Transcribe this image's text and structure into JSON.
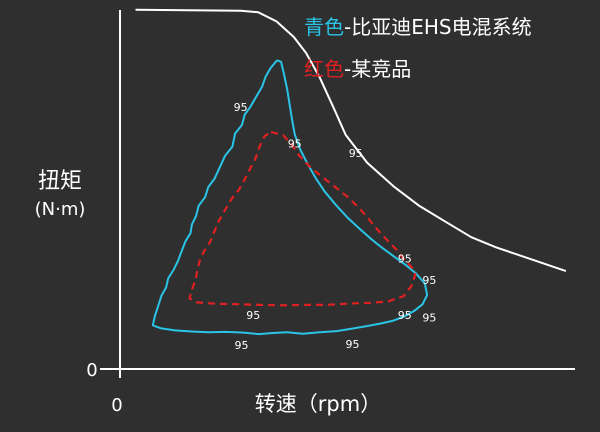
{
  "chart_data": {
    "type": "line",
    "title": "",
    "xlabel": "转速（rpm）",
    "ylabel": [
      "扭矩",
      "(N·m)"
    ],
    "origin_labels": {
      "x": "0",
      "y": "0"
    },
    "xlim": [
      0,
      100
    ],
    "ylim": [
      0,
      100
    ],
    "grid": false,
    "legend": {
      "placement": "top-right",
      "entries": [
        {
          "color_name": "青色",
          "separator": "-",
          "text": "比亚迪EHS电混系统",
          "color": "#29c4e6"
        },
        {
          "color_name": "红色",
          "separator": "-",
          "text": "某竞品",
          "color": "#e02020"
        }
      ]
    },
    "series": [
      {
        "role": "max-torque-curve",
        "color": "#ffffff",
        "style": "solid",
        "points": [
          [
            3.4,
            98.7
          ],
          [
            26.6,
            98.4
          ],
          [
            30.4,
            98.0
          ],
          [
            34.4,
            95.5
          ],
          [
            38.2,
            91.2
          ],
          [
            40.9,
            86.8
          ],
          [
            43.9,
            80.1
          ],
          [
            46.9,
            71.9
          ],
          [
            49.6,
            64.3
          ],
          [
            54.3,
            56.7
          ],
          [
            60.1,
            50.2
          ],
          [
            65.7,
            44.9
          ],
          [
            72.3,
            39.9
          ],
          [
            77.2,
            36.2
          ],
          [
            82.7,
            33.4
          ],
          [
            90.0,
            30.3
          ],
          [
            98.0,
            26.9
          ]
        ]
      },
      {
        "role": "efficiency-contour",
        "name": "比亚迪EHS电混系统",
        "color": "#29c4e6",
        "style": "solid",
        "points": [
          [
            34.5,
            84.8
          ],
          [
            33.0,
            82.5
          ],
          [
            32.0,
            80.3
          ],
          [
            31.2,
            77.5
          ],
          [
            29.8,
            74.5
          ],
          [
            28.6,
            71.9
          ],
          [
            27.4,
            69.9
          ],
          [
            26.8,
            67.0
          ],
          [
            25.3,
            64.7
          ],
          [
            24.7,
            61.1
          ],
          [
            23.1,
            58.6
          ],
          [
            21.9,
            55.3
          ],
          [
            20.8,
            52.3
          ],
          [
            19.4,
            50.0
          ],
          [
            18.7,
            47.2
          ],
          [
            17.3,
            44.9
          ],
          [
            16.7,
            42.0
          ],
          [
            15.8,
            39.7
          ],
          [
            15.5,
            37.3
          ],
          [
            14.4,
            35.1
          ],
          [
            13.5,
            32.2
          ],
          [
            12.7,
            29.6
          ],
          [
            11.8,
            27.3
          ],
          [
            10.6,
            24.9
          ],
          [
            10.1,
            22.3
          ],
          [
            9.1,
            20.1
          ],
          [
            8.4,
            17.3
          ],
          [
            7.7,
            14.7
          ],
          [
            7.2,
            12.0
          ],
          [
            8.9,
            11.2
          ],
          [
            12.1,
            10.6
          ],
          [
            15.8,
            10.3
          ],
          [
            19.4,
            10.1
          ],
          [
            23.3,
            10.2
          ],
          [
            27.2,
            10.0
          ],
          [
            30.5,
            9.6
          ],
          [
            33.6,
            9.9
          ],
          [
            36.7,
            10.1
          ],
          [
            40.2,
            9.7
          ],
          [
            43.9,
            10.1
          ],
          [
            47.6,
            10.4
          ],
          [
            51.0,
            11.1
          ],
          [
            54.4,
            11.8
          ],
          [
            57.3,
            12.5
          ],
          [
            60.1,
            13.3
          ],
          [
            62.6,
            14.5
          ],
          [
            64.7,
            16.0
          ],
          [
            66.5,
            17.8
          ],
          [
            67.5,
            20.3
          ],
          [
            67.0,
            23.5
          ],
          [
            65.0,
            26.3
          ],
          [
            62.8,
            28.6
          ],
          [
            60.0,
            31.1
          ],
          [
            57.5,
            33.4
          ],
          [
            55.0,
            35.9
          ],
          [
            52.6,
            38.6
          ],
          [
            50.0,
            41.6
          ],
          [
            47.5,
            45.0
          ],
          [
            45.0,
            48.7
          ],
          [
            43.0,
            52.5
          ],
          [
            41.2,
            56.4
          ],
          [
            39.6,
            60.3
          ],
          [
            38.4,
            64.5
          ],
          [
            37.8,
            68.6
          ],
          [
            37.3,
            72.5
          ],
          [
            36.8,
            76.5
          ],
          [
            36.1,
            80.6
          ],
          [
            35.4,
            84.4
          ],
          [
            34.5,
            84.8
          ]
        ]
      },
      {
        "role": "efficiency-contour",
        "name": "某竞品",
        "color": "#e02020",
        "style": "dashed",
        "points": [
          [
            33.2,
            65.1
          ],
          [
            35.9,
            64.2
          ],
          [
            37.7,
            61.7
          ],
          [
            39.5,
            58.5
          ],
          [
            41.8,
            55.5
          ],
          [
            44.5,
            52.7
          ],
          [
            47.3,
            50.0
          ],
          [
            50.0,
            47.3
          ],
          [
            52.5,
            44.3
          ],
          [
            54.8,
            41.0
          ],
          [
            56.8,
            38.0
          ],
          [
            58.8,
            35.3
          ],
          [
            60.9,
            32.6
          ],
          [
            62.4,
            30.2
          ],
          [
            64.0,
            28.1
          ],
          [
            64.9,
            25.9
          ],
          [
            64.0,
            22.7
          ],
          [
            62.3,
            20.0
          ],
          [
            59.0,
            18.6
          ],
          [
            55.1,
            18.2
          ],
          [
            50.5,
            18.0
          ],
          [
            45.5,
            17.6
          ],
          [
            40.7,
            17.6
          ],
          [
            35.7,
            17.5
          ],
          [
            30.7,
            17.6
          ],
          [
            26.0,
            17.8
          ],
          [
            21.2,
            17.9
          ],
          [
            16.9,
            18.3
          ],
          [
            15.3,
            19.4
          ],
          [
            15.8,
            21.8
          ],
          [
            16.6,
            24.4
          ],
          [
            17.0,
            27.3
          ],
          [
            17.6,
            30.1
          ],
          [
            18.6,
            32.6
          ],
          [
            19.8,
            34.9
          ],
          [
            20.6,
            37.3
          ],
          [
            21.7,
            40.6
          ],
          [
            23.1,
            43.7
          ],
          [
            24.5,
            46.7
          ],
          [
            26.1,
            49.2
          ],
          [
            27.4,
            52.1
          ],
          [
            28.6,
            55.0
          ],
          [
            29.8,
            57.9
          ],
          [
            30.7,
            61.2
          ],
          [
            31.8,
            64.0
          ],
          [
            33.2,
            65.1
          ]
        ]
      }
    ],
    "annotations": [
      {
        "text": "95",
        "x": 26.5,
        "y": 72.0
      },
      {
        "text": "95",
        "x": 38.4,
        "y": 61.9
      },
      {
        "text": "95",
        "x": 51.8,
        "y": 59.4
      },
      {
        "text": "95",
        "x": 62.6,
        "y": 30.3
      },
      {
        "text": "95",
        "x": 68.0,
        "y": 24.5
      },
      {
        "text": "95",
        "x": 68.0,
        "y": 14.2
      },
      {
        "text": "95",
        "x": 62.6,
        "y": 14.8
      },
      {
        "text": "95",
        "x": 29.3,
        "y": 14.8
      },
      {
        "text": "95",
        "x": 26.7,
        "y": 6.6
      },
      {
        "text": "95",
        "x": 51.1,
        "y": 6.9
      }
    ]
  }
}
